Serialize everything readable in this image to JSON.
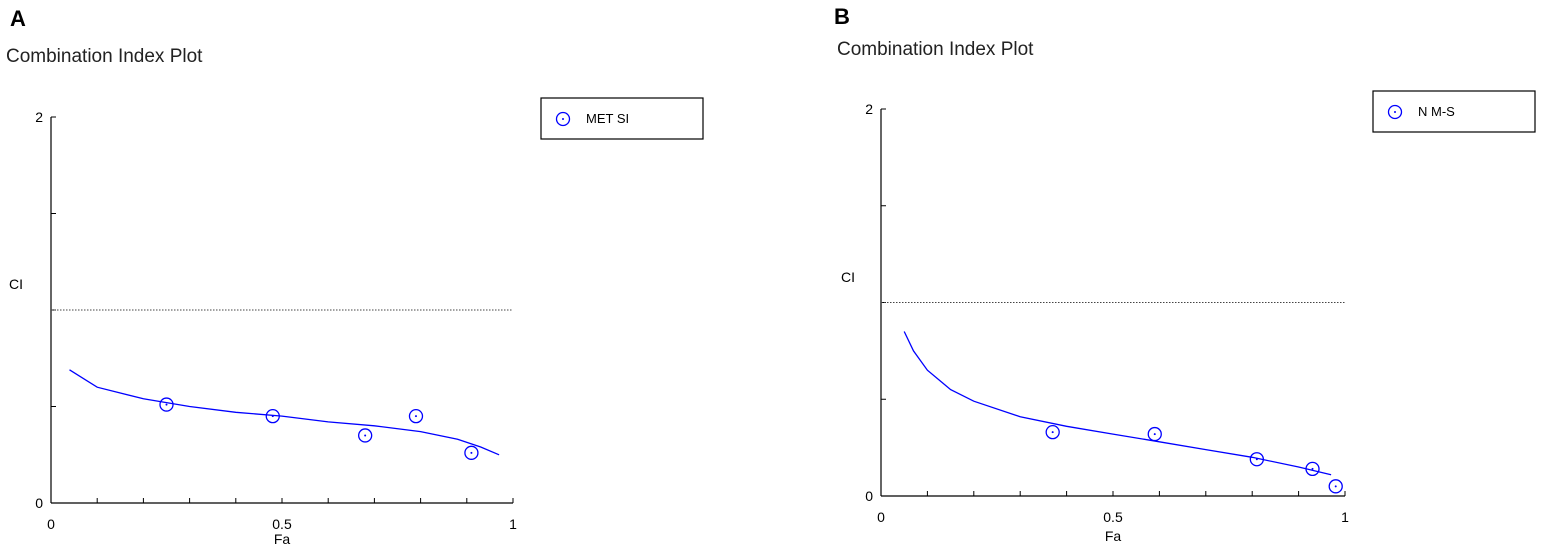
{
  "chart_data": [
    {
      "type": "scatter",
      "panel_label": "A",
      "title": "Combination Index Plot",
      "xlabel": "Fa",
      "ylabel": "CI",
      "xlim": [
        0,
        1
      ],
      "ylim": [
        0,
        2
      ],
      "x_tick_labels": [
        "0",
        "0.5",
        "1"
      ],
      "y_tick_labels": [
        "0",
        "2"
      ],
      "reference_line": 1,
      "legend": {
        "entries": [
          "MET SI"
        ],
        "position": "top-right"
      },
      "series": [
        {
          "name": "MET SI",
          "color": "#0000ff",
          "marker": "circle-dot",
          "points": [
            {
              "x": 0.25,
              "y": 0.51
            },
            {
              "x": 0.48,
              "y": 0.45
            },
            {
              "x": 0.68,
              "y": 0.35
            },
            {
              "x": 0.79,
              "y": 0.45
            },
            {
              "x": 0.91,
              "y": 0.26
            }
          ]
        }
      ],
      "fit_curve": {
        "color": "#0000ff",
        "points": [
          {
            "x": 0.04,
            "y": 0.69
          },
          {
            "x": 0.1,
            "y": 0.6
          },
          {
            "x": 0.2,
            "y": 0.54
          },
          {
            "x": 0.3,
            "y": 0.5
          },
          {
            "x": 0.4,
            "y": 0.47
          },
          {
            "x": 0.5,
            "y": 0.45
          },
          {
            "x": 0.6,
            "y": 0.42
          },
          {
            "x": 0.7,
            "y": 0.4
          },
          {
            "x": 0.8,
            "y": 0.37
          },
          {
            "x": 0.88,
            "y": 0.33
          },
          {
            "x": 0.93,
            "y": 0.29
          },
          {
            "x": 0.97,
            "y": 0.25
          }
        ]
      }
    },
    {
      "type": "scatter",
      "panel_label": "B",
      "title": "Combination Index Plot",
      "xlabel": "Fa",
      "ylabel": "CI",
      "xlim": [
        0,
        1
      ],
      "ylim": [
        0,
        2
      ],
      "x_tick_labels": [
        "0",
        "0.5",
        "1"
      ],
      "y_tick_labels": [
        "0",
        "2"
      ],
      "reference_line": 1,
      "legend": {
        "entries": [
          "N M-S"
        ],
        "position": "top-right"
      },
      "series": [
        {
          "name": "N M-S",
          "color": "#0000ff",
          "marker": "circle-dot",
          "points": [
            {
              "x": 0.37,
              "y": 0.33
            },
            {
              "x": 0.59,
              "y": 0.32
            },
            {
              "x": 0.81,
              "y": 0.19
            },
            {
              "x": 0.93,
              "y": 0.14
            },
            {
              "x": 0.98,
              "y": 0.05
            }
          ]
        }
      ],
      "fit_curve": {
        "color": "#0000ff",
        "points": [
          {
            "x": 0.05,
            "y": 0.85
          },
          {
            "x": 0.07,
            "y": 0.75
          },
          {
            "x": 0.1,
            "y": 0.65
          },
          {
            "x": 0.15,
            "y": 0.55
          },
          {
            "x": 0.2,
            "y": 0.49
          },
          {
            "x": 0.3,
            "y": 0.41
          },
          {
            "x": 0.4,
            "y": 0.36
          },
          {
            "x": 0.5,
            "y": 0.32
          },
          {
            "x": 0.6,
            "y": 0.28
          },
          {
            "x": 0.7,
            "y": 0.24
          },
          {
            "x": 0.8,
            "y": 0.2
          },
          {
            "x": 0.9,
            "y": 0.15
          },
          {
            "x": 0.97,
            "y": 0.11
          }
        ]
      }
    }
  ]
}
